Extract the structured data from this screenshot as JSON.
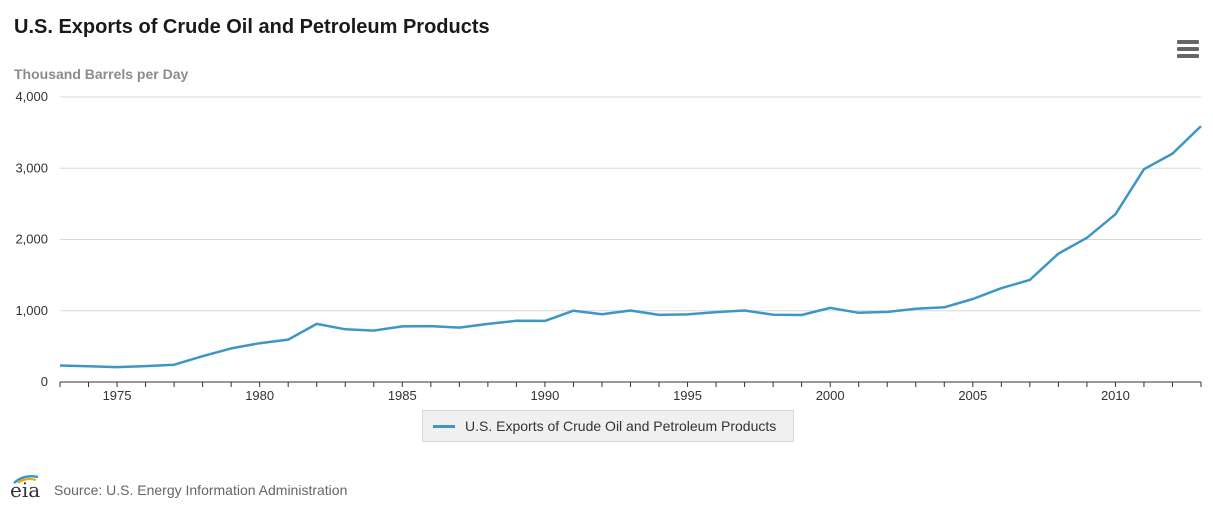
{
  "header": {
    "title": "U.S. Exports of Crude Oil and Petroleum Products",
    "menu_icon": "hamburger-menu-icon"
  },
  "chart_data": {
    "type": "line",
    "title": "U.S. Exports of Crude Oil and Petroleum Products",
    "ylabel": "Thousand Barrels per Day",
    "xlabel": "",
    "ylim": [
      0,
      4000
    ],
    "xlim": [
      1973,
      2013
    ],
    "yticks": [
      0,
      1000,
      2000,
      3000,
      4000
    ],
    "ytick_labels": [
      "0",
      "1,000",
      "2,000",
      "3,000",
      "4,000"
    ],
    "xticks": [
      1975,
      1980,
      1985,
      1990,
      1995,
      2000,
      2005,
      2010
    ],
    "xtick_labels": [
      "1975",
      "1980",
      "1985",
      "1990",
      "1995",
      "2000",
      "2005",
      "2010"
    ],
    "grid": true,
    "legend_position": "bottom-center",
    "series": [
      {
        "name": "U.S. Exports of Crude Oil and Petroleum Products",
        "color": "#3c97c6",
        "x": [
          1973,
          1974,
          1975,
          1976,
          1977,
          1978,
          1979,
          1980,
          1981,
          1982,
          1983,
          1984,
          1985,
          1986,
          1987,
          1988,
          1989,
          1990,
          1991,
          1992,
          1993,
          1994,
          1995,
          1996,
          1997,
          1998,
          1999,
          2000,
          2001,
          2002,
          2003,
          2004,
          2005,
          2006,
          2007,
          2008,
          2009,
          2010,
          2011,
          2012,
          2013
        ],
        "values": [
          231,
          221,
          209,
          223,
          243,
          362,
          471,
          544,
          595,
          815,
          739,
          722,
          781,
          785,
          764,
          815,
          859,
          857,
          1001,
          950,
          1003,
          942,
          949,
          981,
          1003,
          945,
          940,
          1040,
          971,
          984,
          1027,
          1048,
          1165,
          1317,
          1433,
          1802,
          2024,
          2353,
          2986,
          3205,
          3592
        ]
      }
    ]
  },
  "footer": {
    "logo_text": "eia",
    "source": "Source: U.S. Energy Information Administration"
  }
}
